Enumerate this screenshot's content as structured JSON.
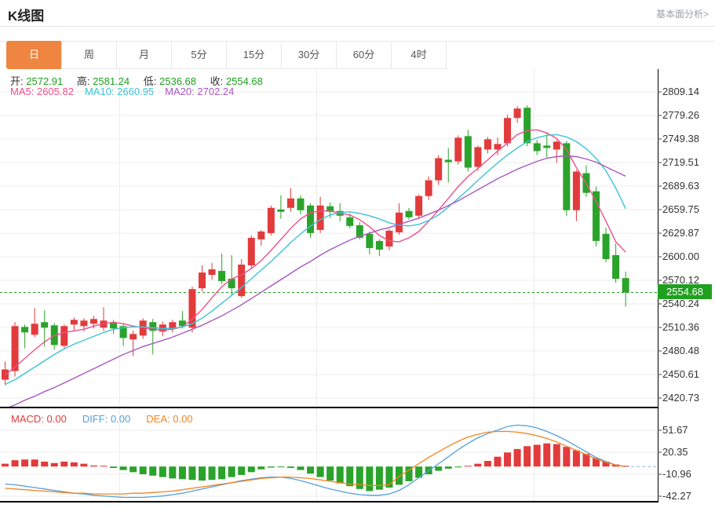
{
  "header": {
    "title": "K线图",
    "link": "基本面分析>"
  },
  "tabs": {
    "items": [
      {
        "label": "日",
        "active": true
      },
      {
        "label": "周",
        "active": false
      },
      {
        "label": "月",
        "active": false
      },
      {
        "label": "5分",
        "active": false
      },
      {
        "label": "15分",
        "active": false
      },
      {
        "label": "30分",
        "active": false
      },
      {
        "label": "60分",
        "active": false
      },
      {
        "label": "4时",
        "active": false
      }
    ]
  },
  "legend": {
    "open_label": "开:",
    "open": "2572.91",
    "high_label": "高:",
    "high": "2581.24",
    "low_label": "低:",
    "low": "2536.68",
    "close_label": "收:",
    "close": "2554.68",
    "ma5_label": "MA5:",
    "ma5_value": "2605.82",
    "ma10_label": "MA10:",
    "ma10_value": "2660.95",
    "ma20_label": "MA20:",
    "ma20_value": "2702.24"
  },
  "macd_legend": {
    "macd_label": "MACD:",
    "macd_value": "0.00",
    "diff_label": "DIFF:",
    "diff_value": "0.00",
    "dea_label": "DEA:",
    "dea_value": "0.00"
  },
  "price_badge": "2554.68",
  "colors": {
    "up": "#e23b3c",
    "down": "#2aa32a",
    "badge": "#1fa01f",
    "accent_tab": "#ee8540",
    "ma5": "#ef4f8a",
    "ma10": "#3cc3d8",
    "ma20": "#aa57c0",
    "diff": "#55a0dc",
    "dea": "#f5831e",
    "grid": "#ececec",
    "axis": "#000000"
  },
  "chart_data": [
    {
      "type": "candlestick",
      "title": "K线图 daily candles with MA5/MA10/MA20",
      "y_ticks": [
        2809.14,
        2779.26,
        2749.38,
        2719.51,
        2689.63,
        2659.75,
        2629.87,
        2600.0,
        2570.12,
        2540.24,
        2510.36,
        2480.48,
        2450.61,
        2420.73
      ],
      "current_price": 2554.68,
      "last_ohlc": {
        "open": 2572.91,
        "high": 2581.24,
        "low": 2536.68,
        "close": 2554.68
      },
      "candles": [
        [
          2444,
          2467,
          2437,
          2457
        ],
        [
          2455,
          2517,
          2448,
          2512
        ],
        [
          2511,
          2514,
          2484,
          2504
        ],
        [
          2501,
          2535,
          2498,
          2515
        ],
        [
          2517,
          2532,
          2486,
          2510
        ],
        [
          2513,
          2516,
          2482,
          2488
        ],
        [
          2487,
          2514,
          2484,
          2512
        ],
        [
          2514,
          2523,
          2506,
          2520
        ],
        [
          2512,
          2522,
          2505,
          2519
        ],
        [
          2515,
          2525,
          2509,
          2521
        ],
        [
          2510,
          2536,
          2506,
          2519
        ],
        [
          2516,
          2520,
          2502,
          2509
        ],
        [
          2512,
          2515,
          2487,
          2497
        ],
        [
          2495,
          2506,
          2474,
          2502
        ],
        [
          2500,
          2522,
          2496,
          2519
        ],
        [
          2517,
          2521,
          2476,
          2506
        ],
        [
          2505,
          2518,
          2499,
          2514
        ],
        [
          2509,
          2520,
          2504,
          2517
        ],
        [
          2519,
          2531,
          2509,
          2512
        ],
        [
          2510,
          2562,
          2504,
          2559
        ],
        [
          2560,
          2589,
          2556,
          2580
        ],
        [
          2577,
          2592,
          2571,
          2584
        ],
        [
          2582,
          2604,
          2565,
          2569
        ],
        [
          2572,
          2602,
          2550,
          2560
        ],
        [
          2550,
          2597,
          2548,
          2590
        ],
        [
          2589,
          2627,
          2585,
          2624
        ],
        [
          2622,
          2634,
          2614,
          2632
        ],
        [
          2630,
          2665,
          2627,
          2662
        ],
        [
          2660,
          2678,
          2648,
          2657
        ],
        [
          2662,
          2687,
          2657,
          2674
        ],
        [
          2674,
          2678,
          2654,
          2659
        ],
        [
          2665,
          2668,
          2624,
          2630
        ],
        [
          2634,
          2676,
          2630,
          2665
        ],
        [
          2664,
          2669,
          2649,
          2657
        ],
        [
          2658,
          2668,
          2645,
          2652
        ],
        [
          2650,
          2655,
          2636,
          2639
        ],
        [
          2640,
          2644,
          2622,
          2624
        ],
        [
          2629,
          2632,
          2603,
          2611
        ],
        [
          2620,
          2622,
          2601,
          2609
        ],
        [
          2613,
          2635,
          2608,
          2633
        ],
        [
          2631,
          2668,
          2628,
          2656
        ],
        [
          2658,
          2662,
          2647,
          2650
        ],
        [
          2652,
          2679,
          2648,
          2677
        ],
        [
          2677,
          2702,
          2672,
          2697
        ],
        [
          2697,
          2729,
          2691,
          2725
        ],
        [
          2723,
          2738,
          2694,
          2720
        ],
        [
          2721,
          2754,
          2717,
          2751
        ],
        [
          2753,
          2761,
          2708,
          2713
        ],
        [
          2714,
          2741,
          2709,
          2739
        ],
        [
          2736,
          2752,
          2731,
          2749
        ],
        [
          2736,
          2751,
          2729,
          2743
        ],
        [
          2744,
          2780,
          2740,
          2776
        ],
        [
          2776,
          2791,
          2770,
          2788
        ],
        [
          2789,
          2792,
          2740,
          2744
        ],
        [
          2744,
          2748,
          2729,
          2734
        ],
        [
          2741,
          2756,
          2726,
          2738
        ],
        [
          2736,
          2748,
          2719,
          2746
        ],
        [
          2744,
          2747,
          2652,
          2659
        ],
        [
          2659,
          2710,
          2645,
          2708
        ],
        [
          2706,
          2716,
          2676,
          2681
        ],
        [
          2683,
          2689,
          2613,
          2620
        ],
        [
          2629,
          2637,
          2593,
          2597
        ],
        [
          2602,
          2617,
          2567,
          2572
        ],
        [
          2572.91,
          2581.24,
          2536.68,
          2554.68
        ]
      ],
      "series": [
        {
          "name": "MA5",
          "values": [
            2450,
            2460,
            2471,
            2482,
            2492,
            2500,
            2504,
            2506,
            2508,
            2512,
            2515,
            2517,
            2515,
            2512,
            2510,
            2508,
            2507,
            2508,
            2511,
            2521,
            2533,
            2548,
            2562,
            2572,
            2577,
            2585,
            2595,
            2608,
            2622,
            2636,
            2648,
            2656,
            2658,
            2658,
            2655,
            2653,
            2647,
            2638,
            2627,
            2620,
            2619,
            2624,
            2632,
            2645,
            2659,
            2674,
            2689,
            2702,
            2712,
            2723,
            2734,
            2744,
            2755,
            2760,
            2761,
            2757,
            2750,
            2736,
            2713,
            2693,
            2670,
            2645,
            2619,
            2605.8
          ]
        },
        {
          "name": "MA10",
          "values": [
            2438,
            2444,
            2452,
            2460,
            2468,
            2476,
            2483,
            2489,
            2494,
            2499,
            2504,
            2508,
            2510,
            2511,
            2511,
            2510,
            2509,
            2509,
            2511,
            2515,
            2522,
            2531,
            2541,
            2551,
            2561,
            2572,
            2583,
            2594,
            2606,
            2618,
            2629,
            2639,
            2647,
            2653,
            2656,
            2657,
            2655,
            2652,
            2648,
            2643,
            2640,
            2639,
            2641,
            2646,
            2653,
            2663,
            2674,
            2685,
            2697,
            2708,
            2719,
            2729,
            2738,
            2746,
            2751,
            2754,
            2755,
            2752,
            2746,
            2737,
            2725,
            2709,
            2687,
            2660.9
          ]
        },
        {
          "name": "MA20",
          "values": [
            2407,
            2412,
            2418,
            2423,
            2429,
            2434,
            2440,
            2446,
            2452,
            2458,
            2464,
            2470,
            2476,
            2481,
            2486,
            2490,
            2494,
            2498,
            2503,
            2508,
            2513,
            2519,
            2525,
            2532,
            2539,
            2547,
            2555,
            2563,
            2571,
            2579,
            2587,
            2594,
            2602,
            2609,
            2615,
            2621,
            2626,
            2630,
            2634,
            2637,
            2641,
            2645,
            2649,
            2654,
            2659,
            2665,
            2671,
            2678,
            2685,
            2692,
            2699,
            2705,
            2711,
            2716,
            2721,
            2725,
            2727,
            2728,
            2727,
            2724,
            2720,
            2714,
            2708,
            2702.2
          ]
        }
      ]
    },
    {
      "type": "bar",
      "title": "MACD (12,26,9)",
      "y_ticks": [
        51.67,
        20.35,
        -10.96,
        -42.27
      ],
      "hist": [
        4,
        9,
        10,
        10,
        7,
        5,
        7,
        6,
        4,
        1.5,
        0.5,
        -2,
        -5,
        -8,
        -11,
        -13,
        -15,
        -17,
        -18,
        -19,
        -20,
        -19,
        -18,
        -15,
        -12,
        -8,
        -4,
        -1.5,
        -0.5,
        -2,
        -5,
        -10,
        -15,
        -20,
        -24,
        -28,
        -32,
        -35,
        -33,
        -30,
        -26,
        -21,
        -16,
        -11,
        -6,
        -3,
        -1,
        1,
        4,
        8,
        14,
        20,
        25,
        29,
        31,
        33,
        32,
        28,
        23,
        18,
        12,
        7,
        3,
        0.5
      ],
      "series": [
        {
          "name": "DIFF",
          "values": [
            -25,
            -26,
            -28,
            -30,
            -32,
            -34,
            -36,
            -38,
            -39,
            -41,
            -42,
            -43,
            -44,
            -44,
            -44,
            -43,
            -42,
            -40,
            -38,
            -35,
            -32,
            -29,
            -26,
            -23,
            -20,
            -18,
            -16,
            -15,
            -15,
            -17,
            -20,
            -24,
            -28,
            -32,
            -35,
            -38,
            -40,
            -41,
            -41,
            -39,
            -34,
            -26,
            -16,
            -6,
            4,
            14,
            24,
            33,
            41,
            47,
            52,
            57,
            59,
            58,
            55,
            50,
            44,
            37,
            29,
            21,
            13,
            7,
            2,
            0
          ]
        },
        {
          "name": "DEA",
          "values": [
            -31,
            -32,
            -33,
            -34,
            -35,
            -36,
            -37,
            -38,
            -38,
            -39,
            -39,
            -39,
            -39,
            -38,
            -38,
            -37,
            -36,
            -35,
            -33,
            -31,
            -29,
            -27,
            -25,
            -23,
            -21,
            -19,
            -17,
            -16,
            -15,
            -15,
            -16,
            -17,
            -19,
            -21,
            -23,
            -25,
            -26,
            -27,
            -27,
            -26,
            -14,
            -5,
            4,
            13,
            21,
            29,
            36,
            42,
            46,
            49,
            50,
            50,
            49,
            47,
            44,
            40,
            35,
            29,
            23,
            17,
            11,
            6,
            2,
            0
          ]
        }
      ]
    }
  ]
}
